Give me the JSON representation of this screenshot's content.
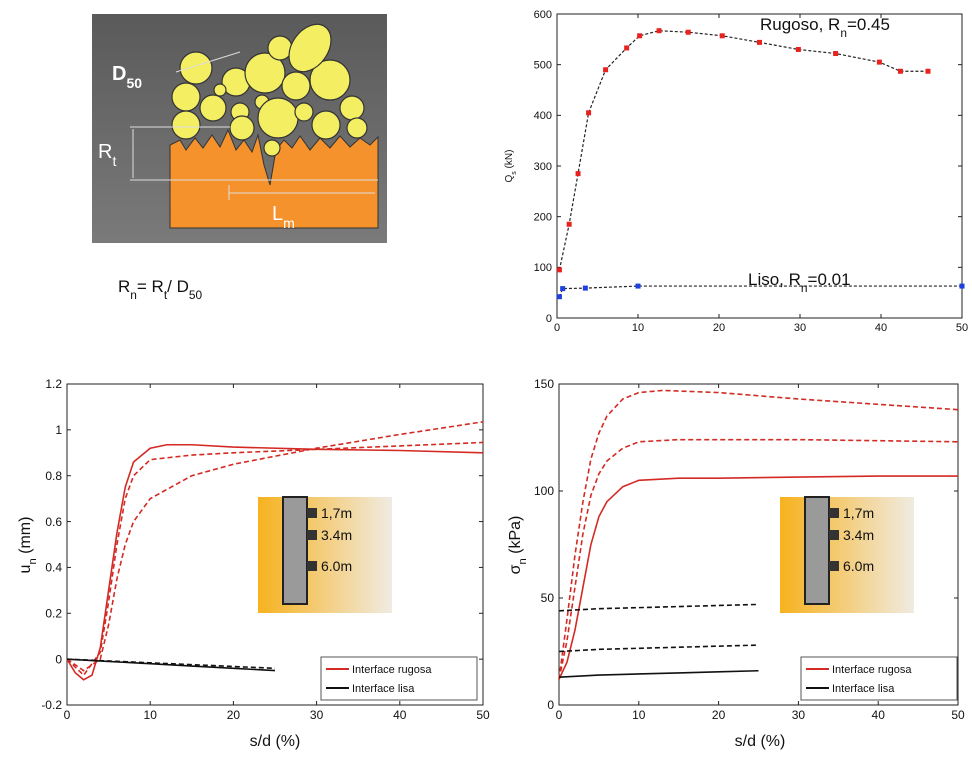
{
  "diagram": {
    "d50": [
      "D",
      "50"
    ],
    "rt": [
      "R",
      "t"
    ],
    "lm": [
      "L",
      "m"
    ]
  },
  "formula": [
    "R",
    "n",
    "= R",
    "t",
    "/ D",
    "50"
  ],
  "chart_data": [
    {
      "type": "line",
      "ylabel": [
        "Q",
        "s",
        " (kN)"
      ],
      "xlim": [
        0,
        50
      ],
      "ylim": [
        0,
        600
      ],
      "xticks": [
        0,
        10,
        20,
        30,
        40,
        50
      ],
      "yticks": [
        0,
        100,
        200,
        300,
        400,
        500,
        600
      ],
      "annotations": [
        [
          "Rugoso, R",
          "n",
          "=0.45"
        ],
        [
          "Liso, R",
          "n",
          "=0.01"
        ]
      ],
      "series": [
        {
          "color": "#e8231f",
          "line_color": "#222",
          "dash": "3,2",
          "marker": true,
          "x": [
            0.3,
            1.5,
            2.6,
            3.9,
            6,
            8.6,
            10.2,
            12.6,
            16.2,
            20.4,
            25,
            29.8,
            34.4,
            39.8,
            42.4,
            45.8
          ],
          "values": [
            95,
            185,
            285,
            405,
            490,
            533,
            557,
            567,
            564,
            557,
            544,
            530,
            522,
            505,
            487,
            487
          ]
        },
        {
          "color": "#1f3fe0",
          "line_color": "#222",
          "dash": "3,2",
          "marker": true,
          "x": [
            0.3,
            0.7,
            3.5,
            10,
            50
          ],
          "values": [
            42,
            58,
            59,
            63,
            63
          ]
        }
      ]
    },
    {
      "type": "line",
      "xlabel": "s/d (%)",
      "ylabel": [
        "u",
        "n",
        " (mm)"
      ],
      "xlim": [
        0,
        50
      ],
      "ylim": [
        -0.2,
        1.2
      ],
      "xticks": [
        0,
        10,
        20,
        30,
        40,
        50
      ],
      "yticks": [
        -0.2,
        0,
        0.2,
        0.4,
        0.6,
        0.8,
        1,
        1.2
      ],
      "inset_labels": [
        "1,7m",
        "3.4m",
        "6.0m"
      ],
      "legend": [
        {
          "name": "Interface rugosa",
          "color": "#d42a24"
        },
        {
          "name": "Interface lisa",
          "color": "#111"
        }
      ],
      "series": [
        {
          "color": "#d42a24",
          "x": [
            0,
            1,
            2,
            3,
            4,
            5,
            6,
            7,
            8,
            10,
            12,
            15,
            20,
            30,
            40,
            50
          ],
          "values": [
            0,
            -0.06,
            -0.09,
            -0.07,
            0.05,
            0.3,
            0.55,
            0.75,
            0.86,
            0.92,
            0.935,
            0.935,
            0.925,
            0.915,
            0.91,
            0.9
          ]
        },
        {
          "color": "#d42a24",
          "dash": "5,3",
          "x": [
            0,
            2,
            4,
            5,
            6,
            7,
            8,
            10,
            15,
            20,
            30,
            40,
            50
          ],
          "values": [
            0,
            -0.07,
            0.03,
            0.25,
            0.5,
            0.7,
            0.8,
            0.87,
            0.89,
            0.9,
            0.915,
            0.93,
            0.945
          ]
        },
        {
          "color": "#d42a24",
          "dash": "5,3",
          "x": [
            0,
            2,
            4,
            5,
            6,
            7,
            8,
            10,
            15,
            20,
            30,
            40,
            50
          ],
          "values": [
            0,
            -0.05,
            0,
            0.15,
            0.35,
            0.5,
            0.6,
            0.7,
            0.8,
            0.85,
            0.92,
            0.98,
            1.035
          ]
        },
        {
          "color": "#111",
          "x": [
            0,
            5,
            10,
            15,
            20,
            25
          ],
          "values": [
            0,
            -0.01,
            -0.02,
            -0.03,
            -0.04,
            -0.05
          ]
        },
        {
          "color": "#111",
          "dash": "5,3",
          "x": [
            0,
            5,
            10,
            15,
            20,
            25
          ],
          "values": [
            0,
            -0.008,
            -0.016,
            -0.024,
            -0.032,
            -0.04
          ]
        }
      ]
    },
    {
      "type": "line",
      "xlabel": "s/d (%)",
      "ylabel": [
        "σ",
        "n",
        " (kPa)"
      ],
      "xlim": [
        0,
        50
      ],
      "ylim": [
        0,
        150
      ],
      "xticks": [
        0,
        10,
        20,
        30,
        40,
        50
      ],
      "yticks": [
        0,
        50,
        100,
        150
      ],
      "inset_labels": [
        "1,7m",
        "3.4m",
        "6.0m"
      ],
      "legend": [
        {
          "name": "Interface rugosa",
          "color": "#d42a24"
        },
        {
          "name": "Interface lisa",
          "color": "#111"
        }
      ],
      "series": [
        {
          "color": "#d42a24",
          "x": [
            0,
            1,
            2,
            3,
            4,
            5,
            6,
            8,
            10,
            15,
            20,
            30,
            40,
            50
          ],
          "values": [
            12,
            20,
            35,
            55,
            75,
            88,
            95,
            102,
            105,
            106,
            106,
            106.5,
            107,
            107
          ]
        },
        {
          "color": "#d42a24",
          "dash": "5,3",
          "x": [
            0,
            1,
            2,
            3,
            4,
            5,
            6,
            8,
            10,
            15,
            20,
            30,
            40,
            50
          ],
          "values": [
            12,
            30,
            55,
            80,
            98,
            108,
            114,
            120,
            123,
            124,
            124,
            124,
            123.5,
            123
          ]
        },
        {
          "color": "#d42a24",
          "dash": "5,3",
          "x": [
            0,
            1,
            2,
            3,
            4,
            5,
            6,
            8,
            10,
            13,
            20,
            30,
            40,
            50
          ],
          "values": [
            12,
            40,
            70,
            95,
            115,
            127,
            135,
            143,
            146,
            147,
            146,
            143,
            140.5,
            138
          ]
        },
        {
          "color": "#111",
          "x": [
            0,
            5,
            10,
            15,
            20,
            25
          ],
          "values": [
            13,
            14,
            14.5,
            15,
            15.5,
            16
          ]
        },
        {
          "color": "#111",
          "dash": "5,3",
          "x": [
            0,
            5,
            10,
            15,
            20,
            25
          ],
          "values": [
            25,
            26,
            26.5,
            27,
            27.5,
            28
          ]
        },
        {
          "color": "#111",
          "dash": "5,3",
          "x": [
            0,
            5,
            10,
            15,
            20,
            25
          ],
          "values": [
            44,
            45,
            45.5,
            46,
            46.5,
            47
          ]
        }
      ]
    }
  ]
}
